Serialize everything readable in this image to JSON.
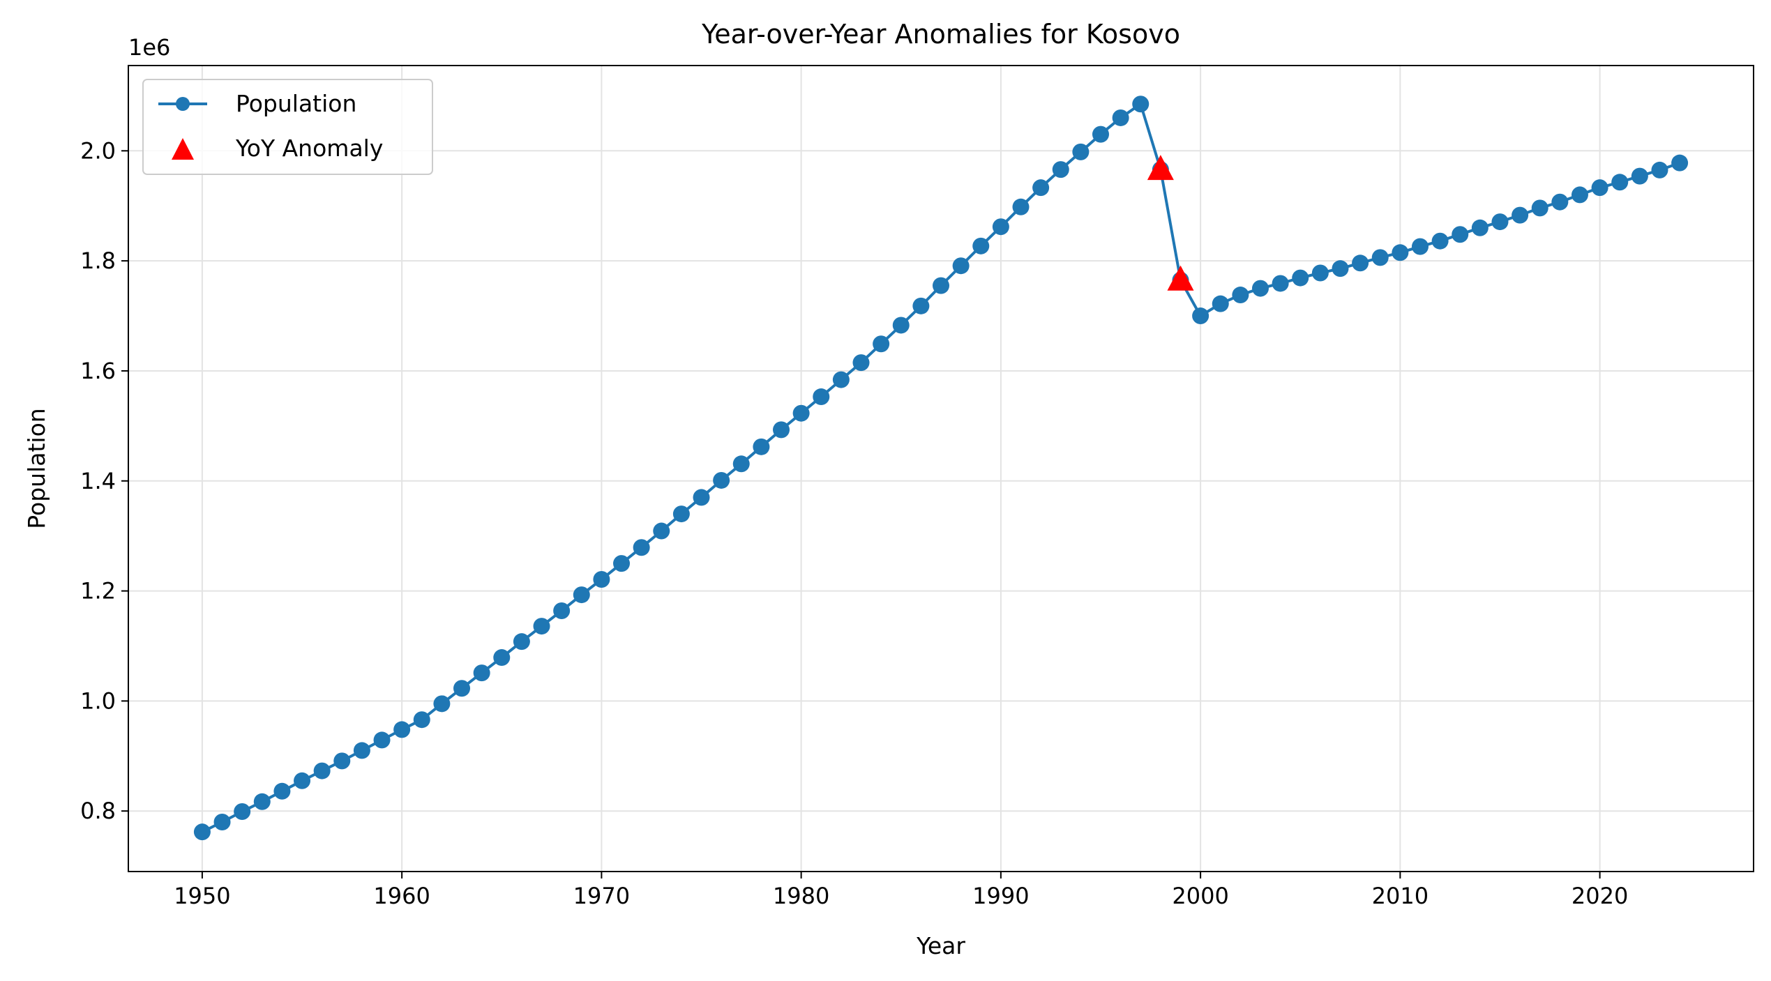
{
  "chart_data": {
    "type": "line",
    "title": "Year-over-Year Anomalies for Kosovo",
    "xlabel": "Year",
    "ylabel": "Population",
    "y_offset_label": "1e6",
    "y_scale": 1000000,
    "xlim": [
      1946.3,
      2027.7
    ],
    "ylim": [
      690000,
      2155000
    ],
    "x_ticks": [
      1950,
      1960,
      1970,
      1980,
      1990,
      2000,
      2010,
      2020
    ],
    "y_ticks": [
      0.8,
      1.0,
      1.2,
      1.4,
      1.6,
      1.8,
      2.0
    ],
    "y_tick_labels": [
      "0.8",
      "1.0",
      "1.2",
      "1.4",
      "1.6",
      "1.8",
      "2.0"
    ],
    "grid": true,
    "legend_position": "top-left",
    "series": [
      {
        "name": "Population",
        "kind": "line-marker",
        "color": "#1f77b4",
        "x": [
          1950,
          1951,
          1952,
          1953,
          1954,
          1955,
          1956,
          1957,
          1958,
          1959,
          1960,
          1961,
          1962,
          1963,
          1964,
          1965,
          1966,
          1967,
          1968,
          1969,
          1970,
          1971,
          1972,
          1973,
          1974,
          1975,
          1976,
          1977,
          1978,
          1979,
          1980,
          1981,
          1982,
          1983,
          1984,
          1985,
          1986,
          1987,
          1988,
          1989,
          1990,
          1991,
          1992,
          1993,
          1994,
          1995,
          1996,
          1997,
          1998,
          1999,
          2000,
          2001,
          2002,
          2003,
          2004,
          2005,
          2006,
          2007,
          2008,
          2009,
          2010,
          2011,
          2012,
          2013,
          2014,
          2015,
          2016,
          2017,
          2018,
          2019,
          2020,
          2021,
          2022,
          2023,
          2024
        ],
        "values": [
          762000,
          780000,
          799000,
          817000,
          836000,
          855000,
          873000,
          891000,
          910000,
          929000,
          948000,
          966000,
          995000,
          1023000,
          1051000,
          1079000,
          1108000,
          1136000,
          1164000,
          1193000,
          1221000,
          1250000,
          1279000,
          1309000,
          1340000,
          1370000,
          1401000,
          1431000,
          1462000,
          1493000,
          1523000,
          1553000,
          1584000,
          1615000,
          1649000,
          1683000,
          1718000,
          1755000,
          1791000,
          1827000,
          1862000,
          1898000,
          1933000,
          1966000,
          1998000,
          2030000,
          2060000,
          2085000,
          1966000,
          1765000,
          1700000,
          1722000,
          1738000,
          1750000,
          1759000,
          1769000,
          1778000,
          1786000,
          1796000,
          1806000,
          1815000,
          1826000,
          1836000,
          1848000,
          1860000,
          1871000,
          1883000,
          1896000,
          1907000,
          1920000,
          1933000,
          1943000,
          1954000,
          1965000,
          1978000
        ]
      },
      {
        "name": "YoY Anomaly",
        "kind": "marker",
        "marker": "triangle",
        "color": "#ff0000",
        "x": [
          1998,
          1999
        ],
        "values": [
          1966000,
          1765000
        ]
      }
    ]
  }
}
